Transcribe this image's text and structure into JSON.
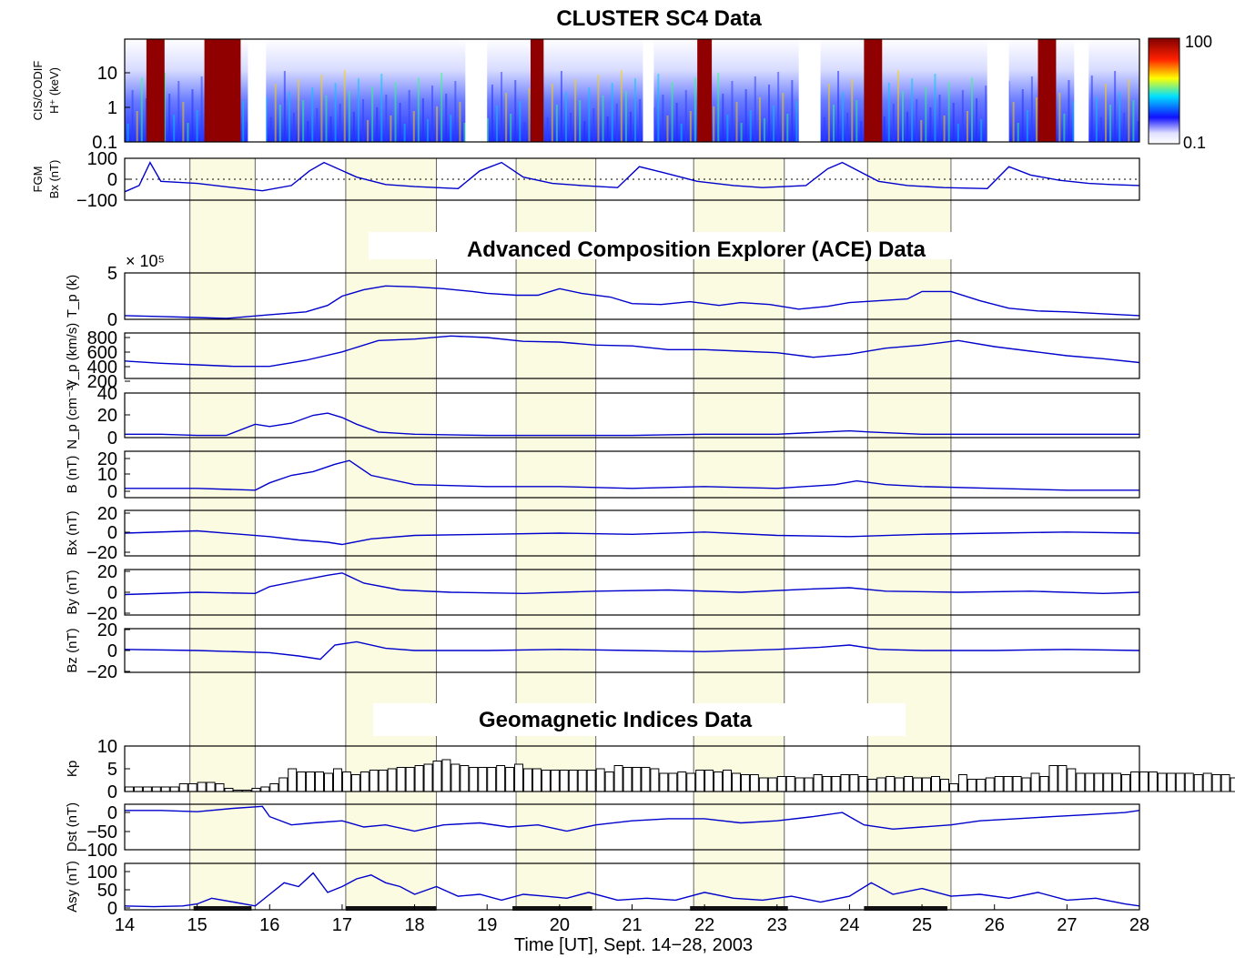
{
  "titles": {
    "cluster": "CLUSTER SC4 Data",
    "ace": "Advanced Composition Explorer (ACE) Data",
    "geomag": "Geomagnetic Indices Data"
  },
  "xlabel": "Time [UT], Sept. 14−28, 2003",
  "colorbar": {
    "max_label": "100",
    "min_label": "0.1",
    "scale": "log",
    "colors": [
      "#ffffff",
      "#1010ff",
      "#00e0ff",
      "#ffff00",
      "#ff2000",
      "#800000"
    ]
  },
  "ylabels": {
    "cis": [
      "CIS/CODIF",
      "H⁺ (keV)"
    ],
    "fgm": [
      "FGM",
      "Bx (nT)"
    ],
    "tp": "T_p (k)",
    "vp": "V_p (km/s)",
    "np": "N_p (cm⁻³)",
    "b": "B (nT)",
    "bx": "Bx (nT)",
    "by": "By (nT)",
    "bz": "Bz (nT)",
    "kp": "Kp",
    "dst": "Dst (nT)",
    "asy": "Asy (nT)"
  },
  "tp_multiplier": "× 10⁵",
  "chart_data": {
    "type": "line",
    "x": {
      "range": [
        14,
        28
      ],
      "ticks": [
        "14",
        "15",
        "16",
        "17",
        "18",
        "19",
        "20",
        "21",
        "22",
        "23",
        "24",
        "25",
        "26",
        "27",
        "28"
      ]
    },
    "highlight_intervals": [
      [
        14.9,
        15.8
      ],
      [
        17.05,
        18.3
      ],
      [
        19.4,
        20.5
      ],
      [
        21.85,
        23.1
      ],
      [
        24.25,
        25.4
      ]
    ],
    "perigee_bars": [
      [
        14.95,
        15.75
      ],
      [
        17.05,
        18.3
      ],
      [
        19.35,
        20.45
      ],
      [
        21.8,
        23.15
      ],
      [
        24.2,
        25.35
      ]
    ],
    "panels": [
      {
        "id": "cis",
        "type": "heatmap",
        "ylim": [
          0.1,
          100
        ],
        "yscale": "log",
        "yticks": [
          "0.1",
          "1",
          "10"
        ],
        "cusp_intervals": [
          [
            14.3,
            14.55
          ],
          [
            15.1,
            15.6
          ],
          [
            19.6,
            19.78
          ],
          [
            21.9,
            22.1
          ],
          [
            24.2,
            24.45
          ],
          [
            26.6,
            26.85
          ]
        ],
        "data_gaps": [
          [
            15.7,
            15.95
          ],
          [
            18.7,
            19.0
          ],
          [
            21.15,
            21.3
          ],
          [
            23.3,
            23.6
          ],
          [
            25.9,
            26.2
          ],
          [
            27.1,
            27.3
          ]
        ]
      },
      {
        "id": "fgm",
        "ylim": [
          -100,
          100
        ],
        "yticks": [
          "100",
          "0",
          "−100"
        ],
        "x": [
          14.0,
          14.2,
          14.35,
          14.5,
          15.0,
          15.5,
          15.9,
          16.3,
          16.55,
          16.75,
          17.2,
          17.6,
          18.0,
          18.6,
          18.9,
          19.2,
          19.5,
          19.9,
          20.3,
          20.8,
          21.1,
          21.45,
          21.9,
          22.4,
          22.8,
          23.4,
          23.7,
          23.9,
          24.4,
          24.8,
          25.3,
          25.9,
          26.2,
          26.5,
          26.9,
          27.3,
          27.6,
          28.0
        ],
        "y": [
          -60,
          -30,
          80,
          -10,
          -20,
          -40,
          -55,
          -30,
          40,
          80,
          10,
          -25,
          -35,
          -45,
          40,
          80,
          10,
          -20,
          -30,
          -40,
          60,
          30,
          -10,
          -30,
          -40,
          -30,
          50,
          80,
          -10,
          -30,
          -40,
          -45,
          60,
          20,
          -5,
          -20,
          -25,
          -30
        ]
      },
      {
        "id": "tp",
        "ylim": [
          0,
          5
        ],
        "yticks": [
          "5",
          "0"
        ],
        "x": [
          14.0,
          14.5,
          15.0,
          15.4,
          16.0,
          16.5,
          16.8,
          17.0,
          17.3,
          17.6,
          18.0,
          18.4,
          18.8,
          19.0,
          19.4,
          19.7,
          20.0,
          20.3,
          20.7,
          21.0,
          21.4,
          21.8,
          22.2,
          22.5,
          22.9,
          23.3,
          23.7,
          24.0,
          24.4,
          24.8,
          25.0,
          25.4,
          25.8,
          26.2,
          26.6,
          27.0,
          27.5,
          28.0
        ],
        "y": [
          0.4,
          0.3,
          0.2,
          0.1,
          0.5,
          0.8,
          1.5,
          2.5,
          3.2,
          3.6,
          3.5,
          3.3,
          3.0,
          2.8,
          2.6,
          2.6,
          3.3,
          2.8,
          2.4,
          1.7,
          1.6,
          1.9,
          1.5,
          1.8,
          1.6,
          1.1,
          1.4,
          1.8,
          2.0,
          2.2,
          3.0,
          3.0,
          2.0,
          1.2,
          0.9,
          0.8,
          0.6,
          0.4
        ]
      },
      {
        "id": "vp",
        "ylim": [
          200,
          800
        ],
        "yticks": [
          "800",
          "600",
          "400",
          "200"
        ],
        "x": [
          14.0,
          14.5,
          15.0,
          15.5,
          16.0,
          16.5,
          17.0,
          17.5,
          18.0,
          18.5,
          19.0,
          19.5,
          20.0,
          20.5,
          21.0,
          21.5,
          22.0,
          22.5,
          23.0,
          23.5,
          24.0,
          24.5,
          25.0,
          25.5,
          26.0,
          26.5,
          27.0,
          27.5,
          28.0
        ],
        "y": [
          430,
          400,
          380,
          360,
          360,
          440,
          550,
          700,
          720,
          760,
          740,
          690,
          680,
          640,
          630,
          580,
          580,
          560,
          540,
          480,
          520,
          600,
          640,
          700,
          620,
          560,
          500,
          460,
          410
        ]
      },
      {
        "id": "np",
        "ylim": [
          0,
          40
        ],
        "yticks": [
          "40",
          "20",
          "0"
        ],
        "x": [
          14.0,
          14.5,
          15.0,
          15.4,
          15.8,
          16.0,
          16.3,
          16.6,
          16.8,
          17.0,
          17.2,
          17.5,
          18.0,
          19.0,
          20.0,
          21.0,
          22.0,
          23.0,
          24.0,
          24.3,
          25.0,
          26.0,
          27.0,
          28.0
        ],
        "y": [
          3,
          3,
          2,
          2,
          12,
          10,
          13,
          20,
          22,
          18,
          12,
          5,
          3,
          2,
          2,
          2,
          3,
          3,
          6,
          5,
          3,
          3,
          3,
          3
        ]
      },
      {
        "id": "b",
        "ylim": [
          0,
          25
        ],
        "yticks": [
          "20",
          "10",
          "0"
        ],
        "x": [
          14.0,
          15.0,
          15.8,
          16.0,
          16.3,
          16.6,
          16.9,
          17.1,
          17.4,
          18.0,
          19.0,
          20.0,
          21.0,
          22.0,
          23.0,
          23.8,
          24.1,
          24.5,
          25.0,
          26.0,
          27.0,
          28.0
        ],
        "y": [
          5,
          5,
          4,
          8,
          12,
          14,
          18,
          20,
          12,
          7,
          6,
          6,
          5,
          6,
          5,
          7,
          9,
          7,
          6,
          5,
          4,
          4
        ]
      },
      {
        "id": "bx",
        "ylim": [
          -20,
          20
        ],
        "yticks": [
          "20",
          "0",
          "−20"
        ],
        "x": [
          14.0,
          15.0,
          16.0,
          16.4,
          16.8,
          17.0,
          17.4,
          18.0,
          19.0,
          20.0,
          21.0,
          22.0,
          23.0,
          24.0,
          25.0,
          26.0,
          27.0,
          28.0
        ],
        "y": [
          0,
          2,
          -3,
          -6,
          -8,
          -10,
          -5,
          -2,
          -1,
          0,
          -1,
          1,
          -2,
          -3,
          -1,
          0,
          1,
          0
        ]
      },
      {
        "id": "by",
        "ylim": [
          -20,
          20
        ],
        "yticks": [
          "20",
          "0",
          "−20"
        ],
        "x": [
          14.0,
          15.0,
          15.8,
          16.0,
          16.4,
          16.8,
          17.0,
          17.3,
          17.8,
          18.5,
          19.5,
          20.5,
          21.5,
          22.5,
          23.5,
          24.0,
          24.5,
          25.5,
          26.5,
          27.5,
          28.0
        ],
        "y": [
          -2,
          0,
          -1,
          5,
          10,
          15,
          17,
          8,
          2,
          0,
          -1,
          1,
          2,
          0,
          3,
          4,
          1,
          0,
          1,
          -1,
          0
        ]
      },
      {
        "id": "bz",
        "ylim": [
          -20,
          20
        ],
        "yticks": [
          "20",
          "0",
          "−20"
        ],
        "x": [
          14.0,
          15.0,
          16.0,
          16.4,
          16.7,
          16.9,
          17.2,
          17.6,
          18.0,
          19.0,
          20.0,
          21.0,
          22.0,
          23.0,
          23.6,
          24.0,
          24.4,
          25.0,
          26.0,
          27.0,
          28.0
        ],
        "y": [
          1,
          0,
          -2,
          -5,
          -8,
          5,
          8,
          2,
          0,
          0,
          1,
          0,
          -1,
          1,
          3,
          5,
          1,
          0,
          0,
          1,
          0
        ]
      },
      {
        "id": "kp",
        "type": "bar",
        "ylim": [
          0,
          10
        ],
        "yticks": [
          "10",
          "5",
          "0"
        ],
        "bar_width_days": 0.125,
        "values": [
          1,
          1,
          1,
          1,
          1,
          1,
          1.7,
          1.7,
          2,
          2,
          1.7,
          0.7,
          0.3,
          0.3,
          0.7,
          1,
          1.7,
          3,
          5,
          4.3,
          4.3,
          4.3,
          4,
          5,
          4.3,
          3.7,
          4.3,
          4.7,
          4.7,
          5,
          5.3,
          5.3,
          5.7,
          6,
          6.7,
          7,
          6,
          5.7,
          5.3,
          5.3,
          5.3,
          5.7,
          5.3,
          6,
          5,
          5,
          4.7,
          4.7,
          4.7,
          4.7,
          4.7,
          4.7,
          5,
          4.3,
          5.7,
          5.3,
          5.3,
          5.3,
          5,
          4,
          4,
          4.3,
          4,
          4.7,
          4.7,
          4.3,
          4.7,
          4,
          3.7,
          3.7,
          3,
          3,
          3.3,
          3.3,
          3,
          3,
          3.7,
          3.3,
          3.3,
          3.7,
          3.7,
          3.3,
          2.7,
          3,
          3.3,
          3,
          3.3,
          3,
          3,
          3.3,
          2.7,
          1.7,
          3.7,
          2.7,
          2.7,
          3,
          3.3,
          3.3,
          3.3,
          3,
          4,
          3.3,
          5.7,
          5.7,
          5,
          4,
          4,
          4,
          4,
          4,
          3.7,
          4.3,
          4.3,
          4.3,
          4,
          4,
          4,
          4,
          3.7,
          4,
          3.7,
          3.7,
          3,
          3,
          3.3,
          3,
          3,
          3,
          1,
          1,
          1,
          1,
          1,
          1,
          1.7,
          2.7,
          1
        ]
      },
      {
        "id": "dst",
        "ylim": [
          -100,
          10
        ],
        "yticks": [
          "0",
          "−50",
          "−100"
        ],
        "x": [
          14.0,
          14.5,
          15.0,
          15.5,
          15.9,
          16.0,
          16.3,
          16.6,
          17.0,
          17.3,
          17.6,
          18.0,
          18.4,
          18.9,
          19.3,
          19.7,
          20.1,
          20.5,
          21.0,
          21.5,
          22.0,
          22.5,
          23.0,
          23.5,
          23.9,
          24.2,
          24.6,
          25.0,
          25.4,
          25.8,
          26.3,
          26.8,
          27.3,
          27.8,
          28.0
        ],
        "y": [
          -5,
          -5,
          -8,
          0,
          5,
          -20,
          -40,
          -35,
          -30,
          -45,
          -40,
          -55,
          -40,
          -35,
          -45,
          -40,
          -55,
          -40,
          -30,
          -25,
          -25,
          -35,
          -30,
          -20,
          -10,
          -40,
          -50,
          -45,
          -40,
          -30,
          -25,
          -20,
          -15,
          -10,
          -5
        ]
      },
      {
        "id": "asy",
        "ylim": [
          0,
          120
        ],
        "yticks": [
          "100",
          "50",
          "0"
        ],
        "x": [
          14.0,
          14.4,
          14.8,
          15.0,
          15.2,
          15.5,
          15.8,
          16.0,
          16.2,
          16.4,
          16.6,
          16.8,
          17.0,
          17.2,
          17.4,
          17.6,
          17.8,
          18.0,
          18.3,
          18.6,
          18.9,
          19.2,
          19.5,
          19.8,
          20.1,
          20.4,
          20.8,
          21.2,
          21.6,
          22.0,
          22.4,
          22.8,
          23.2,
          23.6,
          24.0,
          24.3,
          24.6,
          25.0,
          25.4,
          25.8,
          26.2,
          26.6,
          27.0,
          27.4,
          27.8,
          28.0
        ],
        "y": [
          10,
          8,
          10,
          15,
          30,
          20,
          10,
          40,
          70,
          60,
          95,
          45,
          60,
          80,
          90,
          70,
          60,
          40,
          60,
          35,
          40,
          25,
          40,
          35,
          30,
          45,
          25,
          30,
          25,
          45,
          30,
          25,
          35,
          20,
          35,
          70,
          40,
          55,
          35,
          40,
          30,
          45,
          25,
          30,
          15,
          10
        ]
      }
    ]
  }
}
